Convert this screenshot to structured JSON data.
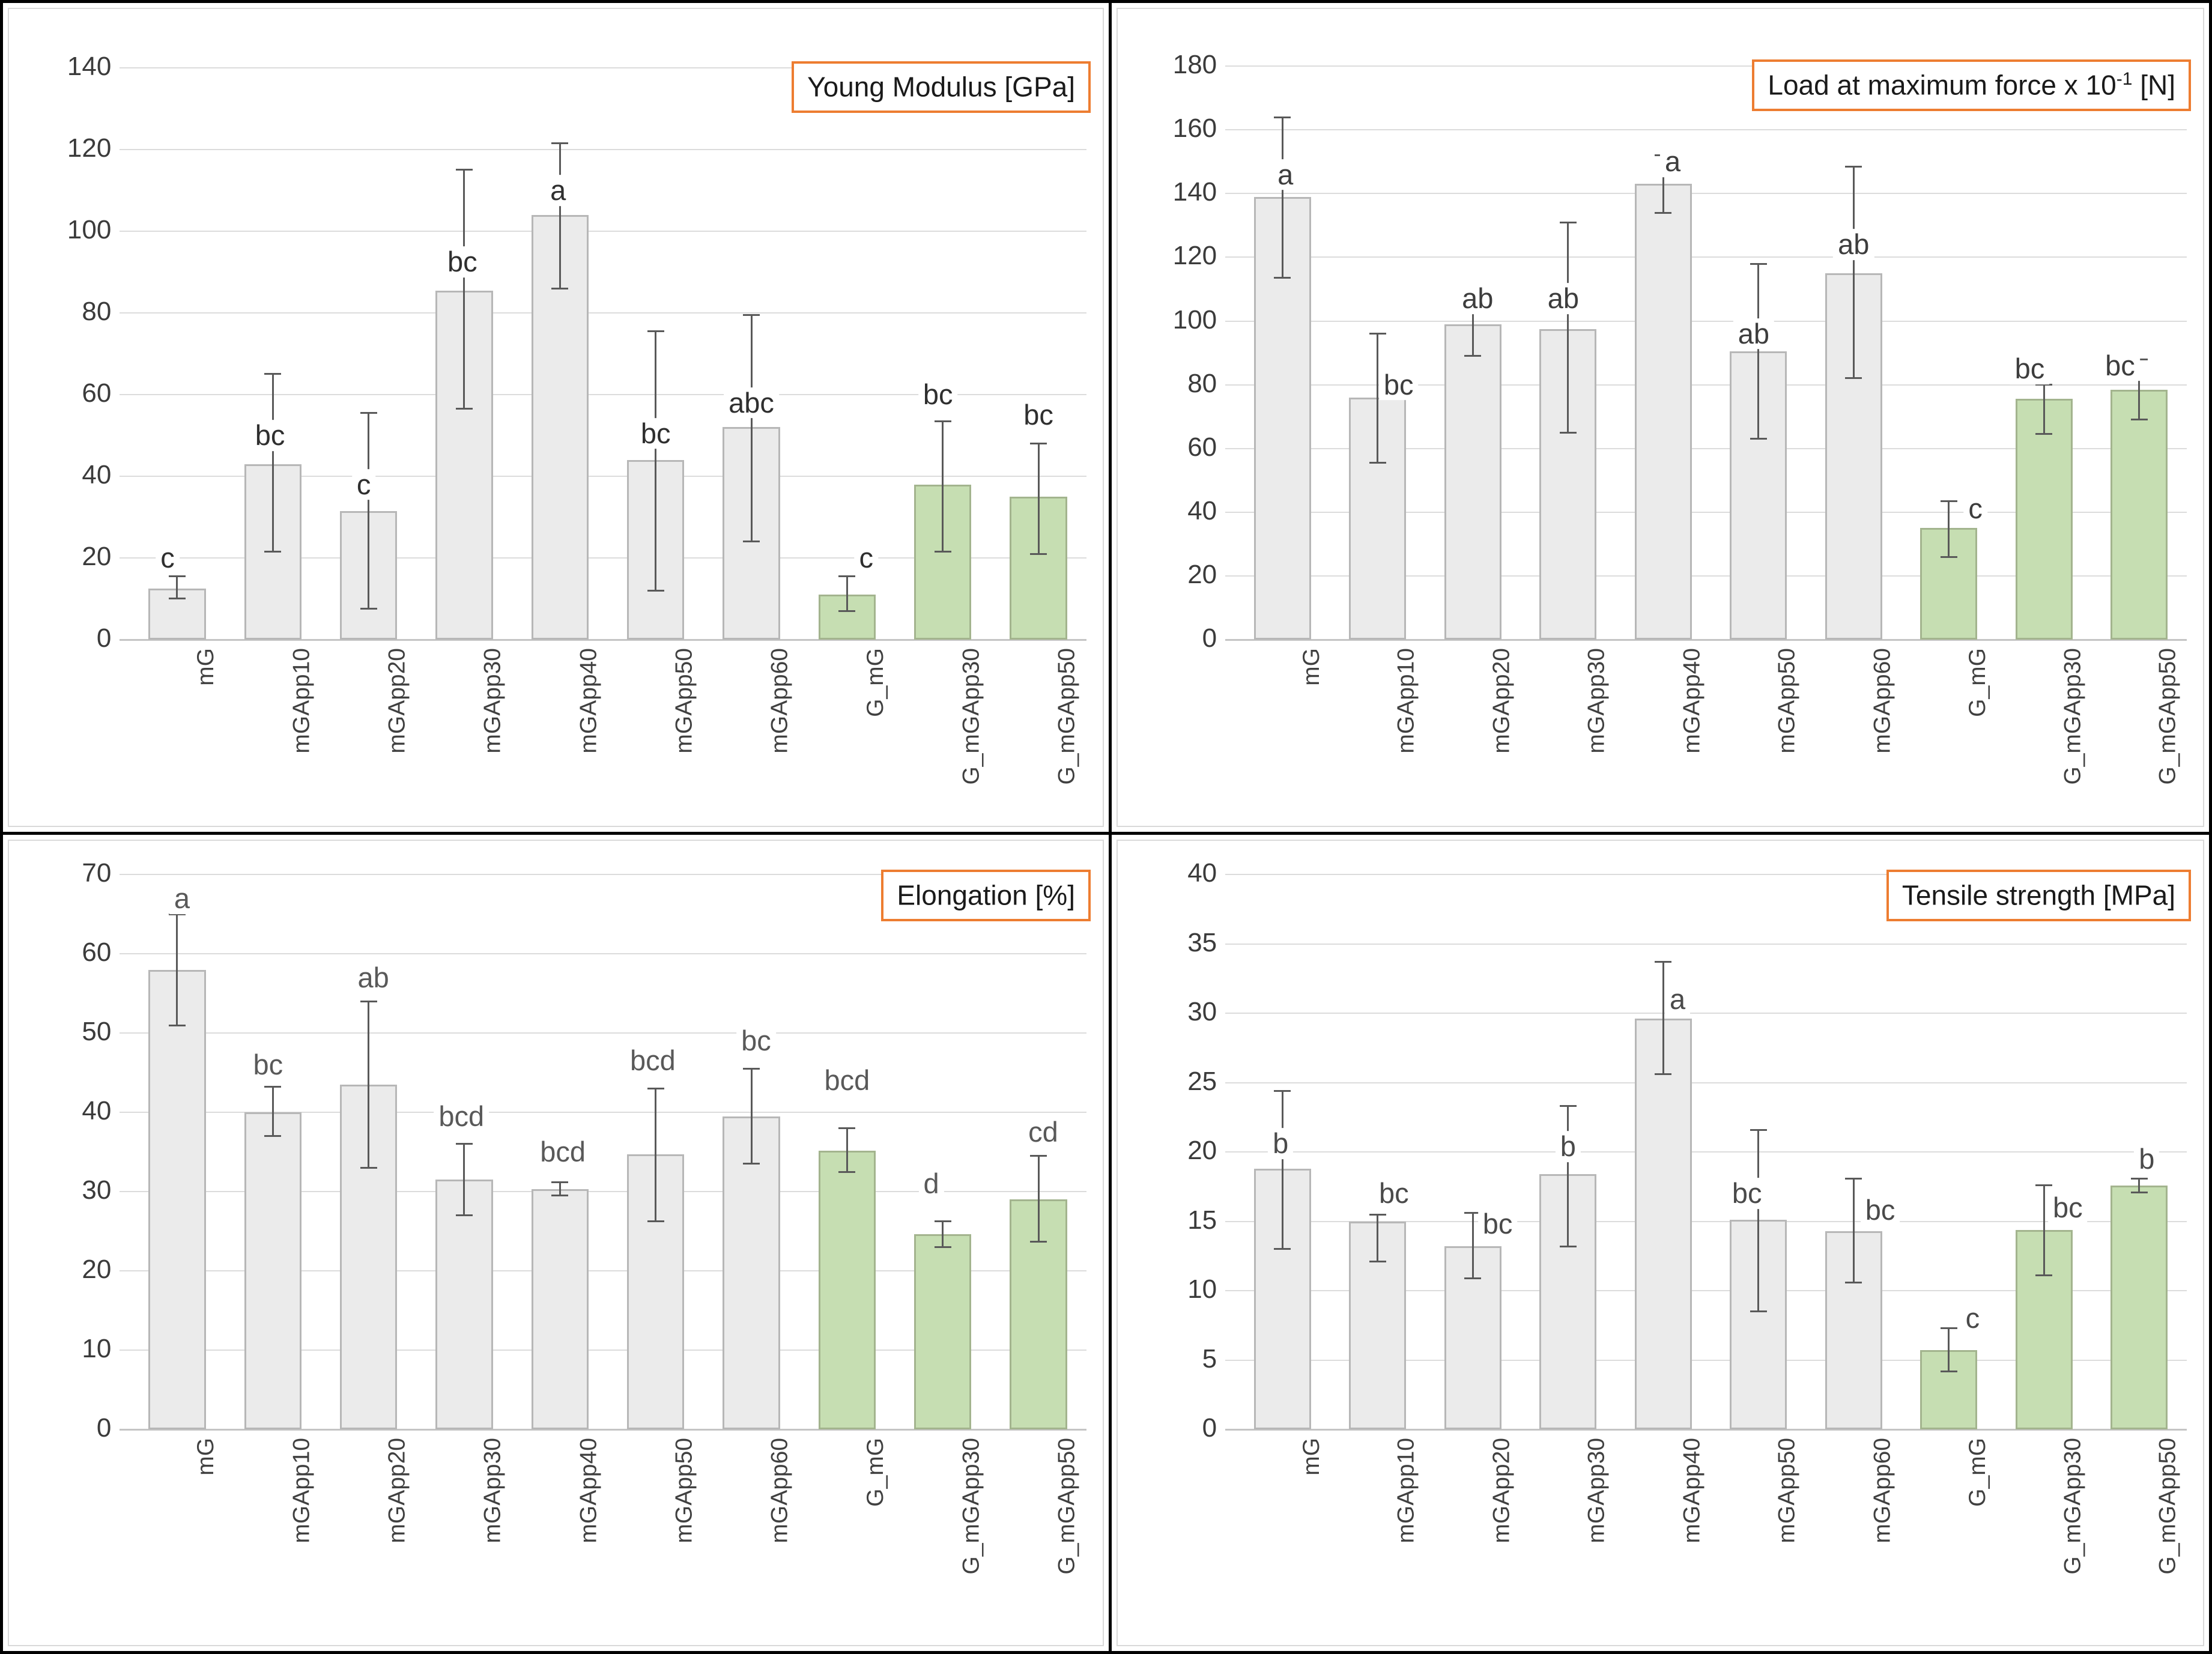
{
  "colors": {
    "gray_fill": "#ebebeb",
    "gray_border": "#b7b7b7",
    "green_fill": "#c6deb2",
    "green_border": "#a3b48e",
    "error_bar": "#595959",
    "gridline": "#dcdcdc",
    "axis_line": "#c4c4c4",
    "tick_text": "#3b3b3b",
    "xlabel_text": "#404040",
    "title_text": "#1a1a1a",
    "title_border": "#ED7D31",
    "panel_border": "#d9d9d9",
    "frame": "#000000"
  },
  "chart_data": [
    {
      "type": "bar",
      "title_pre": "Young Modulus [GPa]",
      "title_sup": "",
      "title_post": "",
      "ylim": [
        0,
        140
      ],
      "ytick_step": 20,
      "grid": true,
      "legend": "none",
      "categories": [
        "mG",
        "mGApp10",
        "mGApp20",
        "mGApp30",
        "mGApp40",
        "mGApp50",
        "mGApp60",
        "G_mG",
        "G_mGApp30",
        "G_mGApp50"
      ],
      "values": [
        12.5,
        43,
        31.5,
        85.5,
        104,
        44,
        52,
        11,
        38,
        35
      ],
      "error_low": [
        10,
        21.5,
        7.5,
        56.5,
        86,
        12,
        24,
        7,
        21.5,
        21
      ],
      "error_high": [
        15.5,
        65,
        55.5,
        115,
        121.5,
        75.5,
        79.5,
        15.5,
        53.5,
        48
      ],
      "letters": [
        "c",
        "bc",
        "c",
        "bc",
        "a",
        "bc",
        "abc",
        "c",
        "bc",
        "bc"
      ],
      "letter_y": [
        20,
        50,
        38,
        92.5,
        110,
        50.5,
        58,
        20,
        60,
        55
      ],
      "letter_dx": [
        -0.1,
        -0.03,
        -0.05,
        -0.02,
        -0.02,
        0,
        0,
        0.2,
        -0.05,
        0
      ],
      "letter_color": "#2f2f2f",
      "green_from_index": 7
    },
    {
      "type": "bar",
      "title_pre": "Load at maximum force x 10",
      "title_sup": "-1",
      "title_post": " [N]",
      "ylim": [
        0,
        180
      ],
      "ytick_step": 20,
      "grid": true,
      "legend": "none",
      "categories": [
        "mG",
        "mGApp10",
        "mGApp20",
        "mGApp30",
        "mGApp40",
        "mGApp50",
        "mGApp60",
        "G_mG",
        "G_mGApp30",
        "G_mGApp50"
      ],
      "values": [
        139,
        76,
        99,
        97.5,
        143,
        90.5,
        115,
        35,
        75.5,
        78.5
      ],
      "error_low": [
        113.5,
        55.5,
        89,
        65,
        134,
        63,
        82,
        26,
        64.5,
        69
      ],
      "error_high": [
        164,
        96,
        108,
        131,
        152,
        118,
        148.5,
        43.5,
        80,
        88
      ],
      "letters": [
        "a",
        "bc",
        "ab",
        "ab",
        "a",
        "ab",
        "ab",
        "c",
        "bc",
        "bc"
      ],
      "letter_y": [
        146,
        80,
        107,
        107,
        150,
        96,
        124,
        41,
        85,
        86
      ],
      "letter_dx": [
        0.03,
        0.22,
        0.05,
        -0.05,
        0.1,
        -0.05,
        0,
        0.28,
        -0.15,
        -0.2
      ],
      "letter_color": "#3d3d3d",
      "green_from_index": 7
    },
    {
      "type": "bar",
      "title_pre": "Elongation [%]",
      "title_sup": "",
      "title_post": "",
      "ylim": [
        0,
        70
      ],
      "ytick_step": 10,
      "grid": true,
      "legend": "none",
      "categories": [
        "mG",
        "mGApp10",
        "mGApp20",
        "mGApp30",
        "mGApp40",
        "mGApp50",
        "mGApp60",
        "G_mG",
        "G_mGApp30",
        "G_mGApp50"
      ],
      "values": [
        58,
        40,
        43.5,
        31.5,
        30.3,
        34.7,
        39.5,
        35.2,
        24.6,
        29
      ],
      "error_low": [
        51,
        37,
        33,
        27,
        29.5,
        26.3,
        33.5,
        32.5,
        23,
        23.7
      ],
      "error_high": [
        65,
        43.2,
        54,
        36,
        31.2,
        43,
        45.5,
        38,
        26.3,
        34.5
      ],
      "letters": [
        "a",
        "bc",
        "ab",
        "bcd",
        "bcd",
        "bcd",
        "bc",
        "bcd",
        "d",
        "cd"
      ],
      "letter_y": [
        67,
        46,
        57,
        39.5,
        35,
        46.5,
        49,
        44,
        31,
        37.5
      ],
      "letter_dx": [
        0.05,
        -0.05,
        0.05,
        -0.03,
        0.03,
        -0.03,
        0.05,
        0,
        -0.12,
        0.05
      ],
      "letter_color": "#595959",
      "green_from_index": 7
    },
    {
      "type": "bar",
      "title_pre": "Tensile strength [MPa]",
      "title_sup": "",
      "title_post": "",
      "ylim": [
        0,
        40
      ],
      "ytick_step": 5,
      "grid": true,
      "legend": "none",
      "categories": [
        "mG",
        "mGApp10",
        "mGApp20",
        "mGApp30",
        "mGApp40",
        "mGApp50",
        "mGApp60",
        "G_mG",
        "G_mGApp30",
        "G_mGApp50"
      ],
      "values": [
        18.8,
        15.0,
        13.2,
        18.4,
        29.6,
        15.1,
        14.3,
        5.7,
        14.4,
        17.6
      ],
      "error_low": [
        13,
        12.1,
        10.9,
        13.2,
        25.6,
        8.5,
        10.6,
        4.2,
        11.1,
        17.1
      ],
      "error_high": [
        24.4,
        15.5,
        15.6,
        23.3,
        33.7,
        21.6,
        18.1,
        7.3,
        17.6,
        18.1
      ],
      "letters": [
        "b",
        "bc",
        "bc",
        "b",
        "a",
        "bc",
        "bc",
        "c",
        "bc",
        "b"
      ],
      "letter_y": [
        20.6,
        17,
        14.8,
        20.4,
        31,
        17,
        15.8,
        8,
        16,
        19.5
      ],
      "letter_dx": [
        -0.02,
        0.17,
        0.26,
        0,
        0.15,
        -0.12,
        0.28,
        0.25,
        0.25,
        0.08
      ],
      "letter_color": "#4a4a4a",
      "green_from_index": 7
    }
  ]
}
